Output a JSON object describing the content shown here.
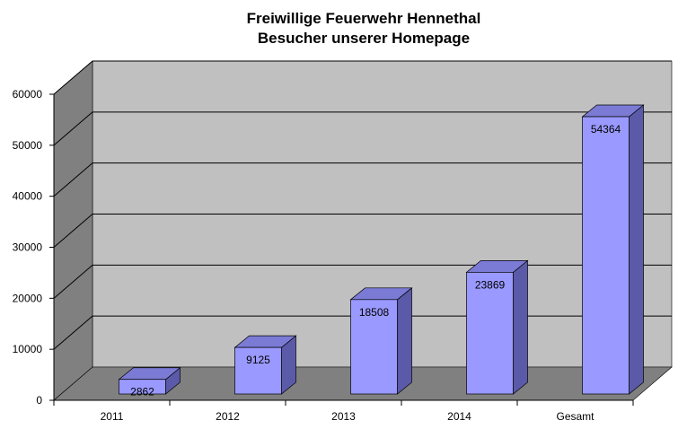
{
  "chart_data": {
    "type": "bar",
    "title": "Freiwillige Feuerwehr Hennethal",
    "subtitle": "Besucher unserer Homepage",
    "categories": [
      "2011",
      "2012",
      "2013",
      "2014",
      "Gesamt"
    ],
    "values": [
      2862,
      9125,
      18508,
      23869,
      54364
    ],
    "ylim": [
      0,
      60000
    ],
    "yticks": [
      0,
      10000,
      20000,
      30000,
      40000,
      50000,
      60000
    ],
    "grid": true,
    "legend": "none",
    "colors": {
      "bar_front": "#9999ff",
      "bar_side": "#5a5aa8",
      "bar_top": "#7b7bd6",
      "back_wall": "#c0c0c0",
      "side_wall": "#808080",
      "floor": "#808080"
    }
  }
}
